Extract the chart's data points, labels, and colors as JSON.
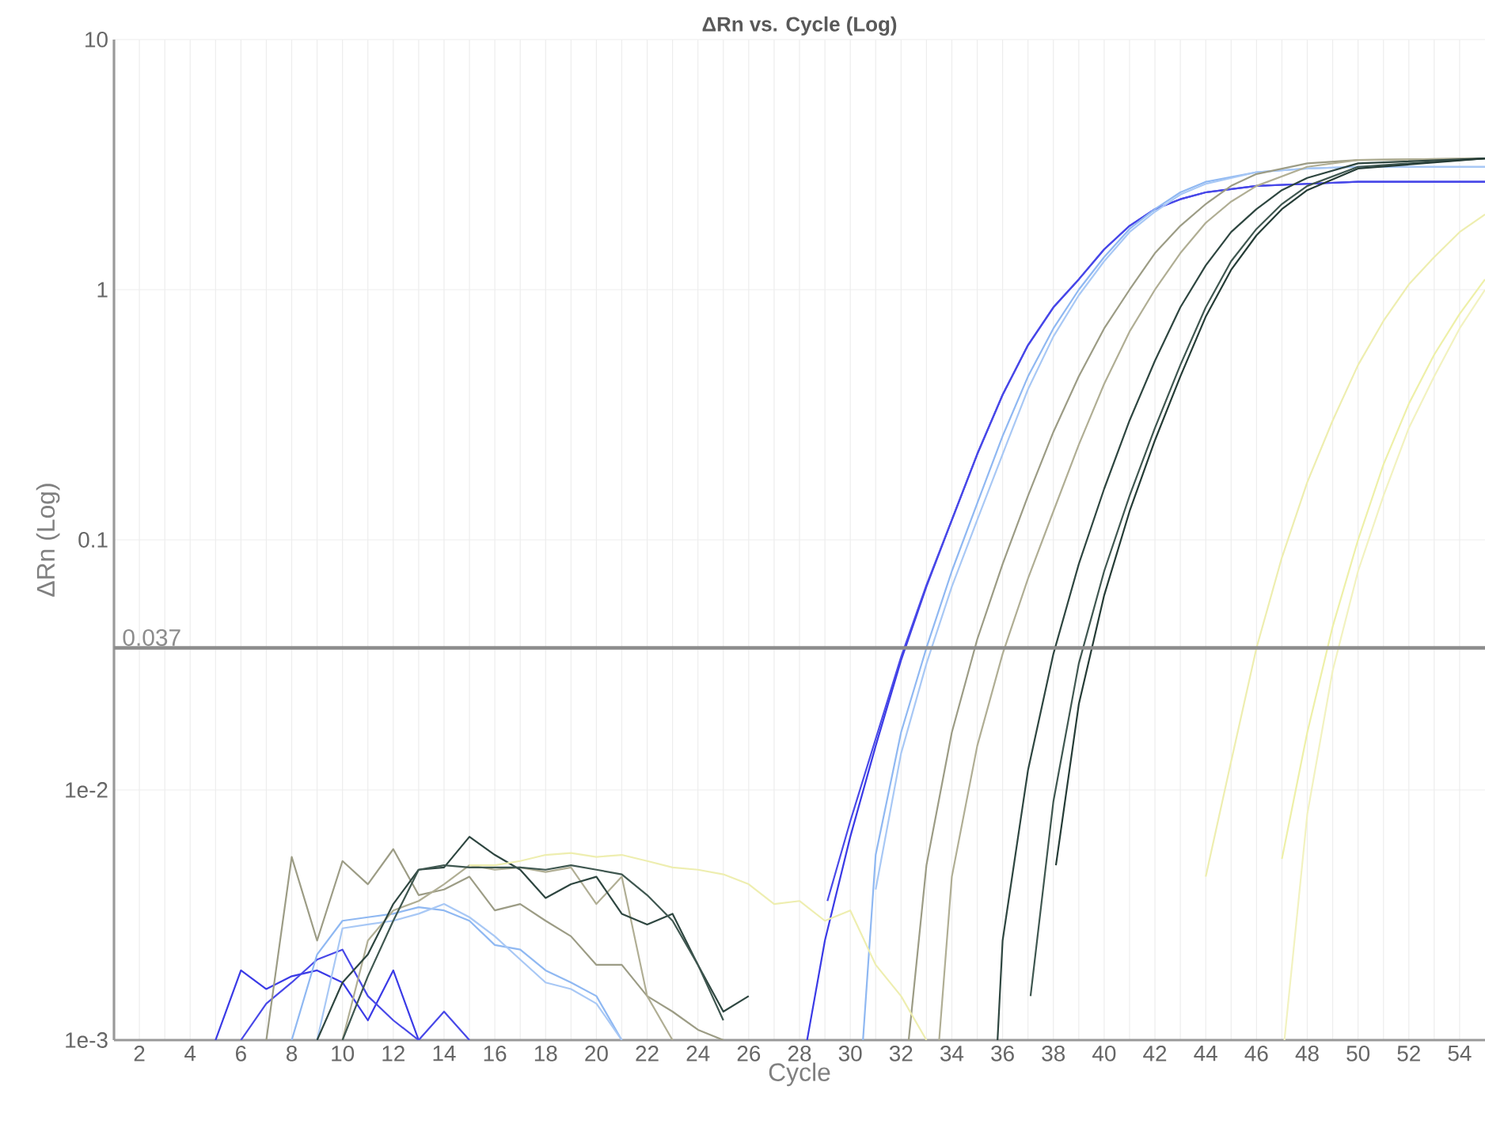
{
  "chart_data": {
    "type": "line",
    "title": "ΔRn vs. Cycle (Log)",
    "xlabel": "Cycle",
    "ylabel": "ΔRn (Log)",
    "log": "y",
    "grid": true,
    "xlim": [
      1,
      55
    ],
    "xticks": [
      2,
      4,
      6,
      8,
      10,
      12,
      14,
      16,
      18,
      20,
      22,
      24,
      26,
      28,
      30,
      32,
      34,
      36,
      38,
      40,
      42,
      44,
      46,
      48,
      50,
      52,
      54
    ],
    "ylim": [
      0.001,
      10
    ],
    "yticks": [
      {
        "value": 0.001,
        "label": "1e-3"
      },
      {
        "value": 0.01,
        "label": "1e-2"
      },
      0.1,
      1,
      10
    ],
    "ref_lines": [
      {
        "axis": "y",
        "value": 0.037,
        "label": "0.037",
        "color": "#8c8c8c"
      }
    ],
    "series": [
      {
        "color": "#3a3ae6",
        "x": [
          5,
          6,
          7,
          8,
          9,
          10,
          11,
          12,
          13,
          null,
          28.3,
          29,
          30,
          31,
          32,
          33,
          34,
          35,
          36,
          37,
          38,
          39,
          40,
          41,
          42,
          43,
          44,
          46,
          48,
          50,
          55
        ],
        "values": [
          0.001,
          0.0019,
          0.0016,
          0.0018,
          0.0019,
          0.0017,
          0.0012,
          0.0019,
          0.001,
          null,
          0.001,
          0.0025,
          0.0065,
          0.015,
          0.033,
          0.065,
          0.12,
          0.22,
          0.38,
          0.6,
          0.85,
          1.1,
          1.45,
          1.8,
          2.1,
          2.3,
          2.45,
          2.6,
          2.65,
          2.7,
          2.7
        ]
      },
      {
        "color": "#4848e8",
        "x": [
          6,
          7,
          8,
          9,
          10,
          11,
          12,
          13,
          14,
          15,
          null,
          29.1,
          30,
          31,
          32,
          33,
          34,
          35,
          36,
          37,
          38,
          39,
          40,
          41,
          42,
          43,
          44,
          46,
          48,
          50,
          55
        ],
        "values": [
          0.001,
          0.0014,
          0.0017,
          0.0021,
          0.0023,
          0.0015,
          0.0012,
          0.001,
          0.0013,
          0.001,
          null,
          0.0036,
          0.0075,
          0.016,
          0.034,
          0.066,
          0.12,
          0.22,
          0.38,
          0.6,
          0.85,
          1.1,
          1.45,
          1.8,
          2.1,
          2.3,
          2.45,
          2.6,
          2.65,
          2.7,
          2.7
        ]
      },
      {
        "color": "#8fb8f2",
        "x": [
          8,
          9,
          10,
          11,
          12,
          13,
          14,
          15,
          16,
          17,
          18,
          19,
          20,
          21,
          null,
          30.5,
          31,
          32,
          33,
          34,
          35,
          36,
          37,
          38,
          39,
          40,
          41,
          42,
          43,
          44,
          46,
          48,
          50,
          55
        ],
        "values": [
          0.001,
          0.0022,
          0.003,
          0.0031,
          0.0032,
          0.0034,
          0.0033,
          0.003,
          0.0024,
          0.0023,
          0.0019,
          0.0017,
          0.0015,
          0.001,
          null,
          0.001,
          0.0055,
          0.017,
          0.037,
          0.075,
          0.14,
          0.26,
          0.45,
          0.7,
          1.0,
          1.35,
          1.75,
          2.1,
          2.45,
          2.7,
          2.95,
          3.05,
          3.1,
          3.1
        ]
      },
      {
        "color": "#a8c8f5",
        "x": [
          9,
          10,
          11,
          12,
          13,
          14,
          15,
          16,
          17,
          18,
          19,
          20,
          21,
          null,
          31,
          32,
          33,
          34,
          35,
          36,
          37,
          38,
          39,
          40,
          41,
          42,
          43,
          44,
          46,
          48,
          50,
          55
        ],
        "values": [
          0.001,
          0.0028,
          0.0029,
          0.003,
          0.0032,
          0.0035,
          0.0031,
          0.0026,
          0.0021,
          0.0017,
          0.0016,
          0.0014,
          0.001,
          null,
          0.004,
          0.014,
          0.032,
          0.065,
          0.12,
          0.22,
          0.4,
          0.65,
          0.95,
          1.3,
          1.7,
          2.05,
          2.4,
          2.65,
          2.95,
          3.05,
          3.1,
          3.1
        ]
      },
      {
        "color": "#9c9c85",
        "x": [
          7,
          8,
          9,
          10,
          11,
          12,
          13,
          14,
          15,
          16,
          17,
          18,
          19,
          20,
          21,
          22,
          23,
          24,
          25,
          null,
          32.3,
          33,
          34,
          35,
          36,
          37,
          38,
          39,
          40,
          41,
          42,
          43,
          44,
          45,
          46,
          48,
          50,
          55
        ],
        "values": [
          0.001,
          0.0054,
          0.0025,
          0.0052,
          0.0042,
          0.0058,
          0.0038,
          0.004,
          0.0045,
          0.0033,
          0.0035,
          0.003,
          0.0026,
          0.002,
          0.002,
          0.0015,
          0.0013,
          0.0011,
          0.001,
          null,
          0.001,
          0.005,
          0.017,
          0.04,
          0.08,
          0.15,
          0.27,
          0.45,
          0.7,
          1.0,
          1.4,
          1.8,
          2.2,
          2.6,
          2.9,
          3.2,
          3.3,
          3.35
        ]
      },
      {
        "color": "#b0ae94",
        "x": [
          10,
          11,
          12,
          13,
          14,
          15,
          16,
          17,
          18,
          19,
          20,
          21,
          22,
          23,
          null,
          33.5,
          34,
          35,
          36,
          37,
          38,
          39,
          40,
          41,
          42,
          43,
          44,
          45,
          46,
          48,
          50,
          55
        ],
        "values": [
          0.001,
          0.0025,
          0.0033,
          0.0036,
          0.0042,
          0.005,
          0.0048,
          0.0049,
          0.0047,
          0.0049,
          0.0035,
          0.0045,
          0.0015,
          0.001,
          null,
          0.001,
          0.0045,
          0.015,
          0.035,
          0.07,
          0.13,
          0.24,
          0.42,
          0.68,
          1.0,
          1.4,
          1.85,
          2.25,
          2.6,
          3.1,
          3.3,
          3.35
        ]
      },
      {
        "color": "#2e4640",
        "x": [
          9,
          10,
          11,
          12,
          13,
          14,
          15,
          16,
          17,
          18,
          19,
          20,
          21,
          22,
          23,
          24,
          25,
          26,
          null,
          35.8,
          36,
          37,
          38,
          39,
          40,
          41,
          42,
          43,
          44,
          45,
          46,
          47,
          48,
          50,
          55
        ],
        "values": [
          0.001,
          0.0017,
          0.0022,
          0.0035,
          0.0048,
          0.0049,
          0.0065,
          0.0055,
          0.0048,
          0.0037,
          0.0042,
          0.0045,
          0.0032,
          0.0029,
          0.0032,
          0.002,
          0.0013,
          0.0015,
          null,
          0.001,
          0.0025,
          0.012,
          0.035,
          0.08,
          0.16,
          0.3,
          0.52,
          0.85,
          1.25,
          1.7,
          2.1,
          2.5,
          2.8,
          3.2,
          3.35
        ]
      },
      {
        "color": "#3f5750",
        "x": [
          10,
          11,
          12,
          13,
          14,
          15,
          16,
          17,
          18,
          19,
          20,
          21,
          22,
          23,
          24,
          25,
          null,
          37.1,
          38,
          39,
          40,
          41,
          42,
          43,
          44,
          45,
          46,
          47,
          48,
          50,
          55
        ],
        "values": [
          0.001,
          0.0018,
          0.003,
          0.0048,
          0.005,
          0.0049,
          0.0049,
          0.0049,
          0.0048,
          0.005,
          0.0048,
          0.0046,
          0.0038,
          0.003,
          0.002,
          0.0012,
          null,
          0.0015,
          0.009,
          0.032,
          0.075,
          0.15,
          0.28,
          0.5,
          0.85,
          1.3,
          1.75,
          2.2,
          2.6,
          3.1,
          3.35
        ]
      },
      {
        "color": "#253c36",
        "x": [
          38.1,
          39,
          40,
          41,
          42,
          43,
          44,
          45,
          46,
          47,
          48,
          50,
          55
        ],
        "values": [
          0.005,
          0.022,
          0.06,
          0.13,
          0.25,
          0.45,
          0.78,
          1.2,
          1.65,
          2.1,
          2.5,
          3.05,
          3.35
        ]
      },
      {
        "color": "#eeeeb0",
        "x": [
          15,
          16,
          17,
          18,
          19,
          20,
          21,
          22,
          23,
          24,
          25,
          26,
          27,
          28,
          29,
          30,
          31,
          32,
          33,
          null,
          44,
          45,
          46,
          47,
          48,
          49,
          50,
          51,
          52,
          53,
          54,
          55
        ],
        "values": [
          0.005,
          0.005,
          0.0052,
          0.0055,
          0.0056,
          0.0054,
          0.0055,
          0.0052,
          0.0049,
          0.0048,
          0.0046,
          0.0042,
          0.0035,
          0.0036,
          0.003,
          0.0033,
          0.002,
          0.0015,
          0.001,
          null,
          0.0045,
          0.013,
          0.037,
          0.085,
          0.17,
          0.3,
          0.5,
          0.75,
          1.05,
          1.35,
          1.7,
          2.0
        ]
      },
      {
        "color": "#eef0a8",
        "x": [
          47,
          48,
          49,
          50,
          51,
          52,
          53,
          54,
          55
        ],
        "values": [
          0.0053,
          0.017,
          0.045,
          0.1,
          0.2,
          0.35,
          0.55,
          0.8,
          1.1
        ]
      },
      {
        "color": "#f2f2c0",
        "x": [
          47.1,
          48,
          49,
          50,
          51,
          52,
          53,
          54,
          55
        ],
        "values": [
          0.001,
          0.008,
          0.03,
          0.075,
          0.15,
          0.28,
          0.45,
          0.7,
          1.0
        ]
      }
    ]
  }
}
